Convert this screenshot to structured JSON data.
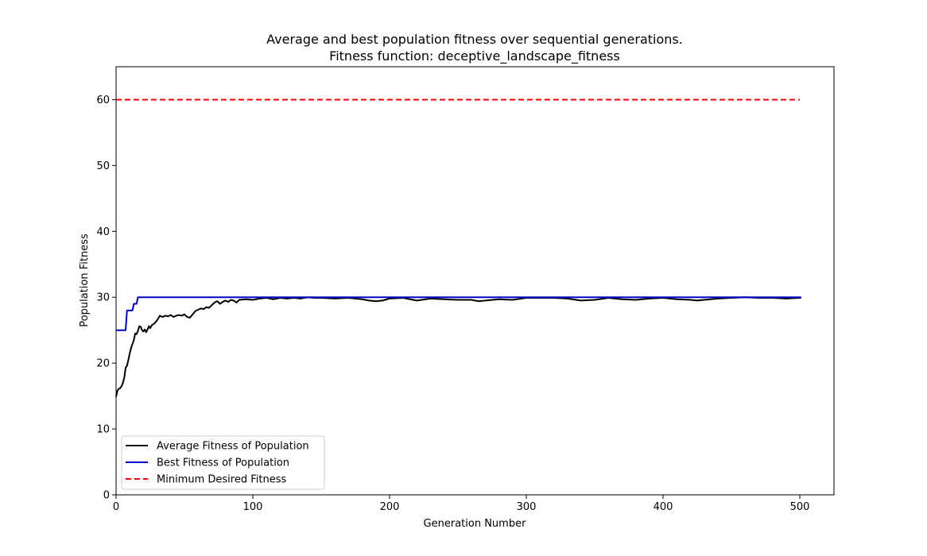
{
  "chart_data": {
    "type": "line",
    "title_line1": "Average and best population fitness over sequential generations.",
    "title_line2": "Fitness function: deceptive_landscape_fitness",
    "xlabel": "Generation Number",
    "ylabel": "Population Fitness",
    "xlim": [
      0,
      525
    ],
    "ylim": [
      0,
      65
    ],
    "xticks": [
      0,
      100,
      200,
      300,
      400,
      500
    ],
    "yticks": [
      0,
      10,
      20,
      30,
      40,
      50,
      60
    ],
    "grid": false,
    "legend_position": "bottom-left",
    "series": [
      {
        "name": "Average Fitness of Population",
        "color": "#000000",
        "style": "solid",
        "x": [
          0,
          1,
          2,
          3,
          4,
          5,
          6,
          7,
          8,
          9,
          10,
          11,
          12,
          13,
          14,
          15,
          16,
          17,
          18,
          19,
          20,
          21,
          22,
          23,
          24,
          25,
          26,
          27,
          28,
          30,
          32,
          34,
          36,
          38,
          40,
          42,
          44,
          46,
          48,
          50,
          52,
          54,
          56,
          58,
          60,
          62,
          64,
          66,
          68,
          70,
          72,
          74,
          76,
          78,
          80,
          82,
          84,
          86,
          88,
          90,
          95,
          100,
          105,
          110,
          115,
          120,
          125,
          130,
          135,
          140,
          145,
          150,
          160,
          170,
          180,
          185,
          190,
          195,
          200,
          210,
          220,
          230,
          240,
          250,
          260,
          265,
          270,
          280,
          290,
          300,
          310,
          320,
          330,
          340,
          350,
          360,
          370,
          380,
          390,
          400,
          410,
          420,
          425,
          430,
          440,
          450,
          460,
          470,
          480,
          490,
          500,
          501
        ],
        "y": [
          14.9,
          15.8,
          16.1,
          16.2,
          16.5,
          17.0,
          17.8,
          19.3,
          19.6,
          20.5,
          21.5,
          22.3,
          22.9,
          23.5,
          24.5,
          24.4,
          24.9,
          25.6,
          25.5,
          25.0,
          24.8,
          25.1,
          24.7,
          25.1,
          25.6,
          25.3,
          25.7,
          25.9,
          26.0,
          26.5,
          27.2,
          27.0,
          27.2,
          27.1,
          27.3,
          27.0,
          27.2,
          27.3,
          27.2,
          27.4,
          27.0,
          26.9,
          27.4,
          27.9,
          28.1,
          28.3,
          28.2,
          28.5,
          28.4,
          28.8,
          29.2,
          29.4,
          29.0,
          29.3,
          29.5,
          29.3,
          29.6,
          29.5,
          29.2,
          29.6,
          29.7,
          29.6,
          29.8,
          29.9,
          29.7,
          29.9,
          29.8,
          29.9,
          29.8,
          30.0,
          29.9,
          29.9,
          29.8,
          29.9,
          29.7,
          29.5,
          29.4,
          29.5,
          29.8,
          29.9,
          29.5,
          29.8,
          29.7,
          29.6,
          29.6,
          29.4,
          29.5,
          29.7,
          29.6,
          29.9,
          29.9,
          29.9,
          29.8,
          29.5,
          29.6,
          29.9,
          29.7,
          29.6,
          29.8,
          29.9,
          29.7,
          29.6,
          29.5,
          29.6,
          29.8,
          29.9,
          30.0,
          29.9,
          29.9,
          29.8,
          29.9,
          29.9
        ]
      },
      {
        "name": "Best Fitness of Population",
        "color": "#0000cc",
        "style": "solid",
        "x": [
          0,
          7,
          8,
          12,
          13,
          15,
          16,
          501
        ],
        "y": [
          25,
          25,
          28,
          28,
          29,
          29,
          30,
          30
        ]
      },
      {
        "name": "Minimum Desired Fitness",
        "color": "#ff0000",
        "style": "dashed",
        "x": [
          0,
          500
        ],
        "y": [
          60,
          60
        ]
      }
    ]
  }
}
